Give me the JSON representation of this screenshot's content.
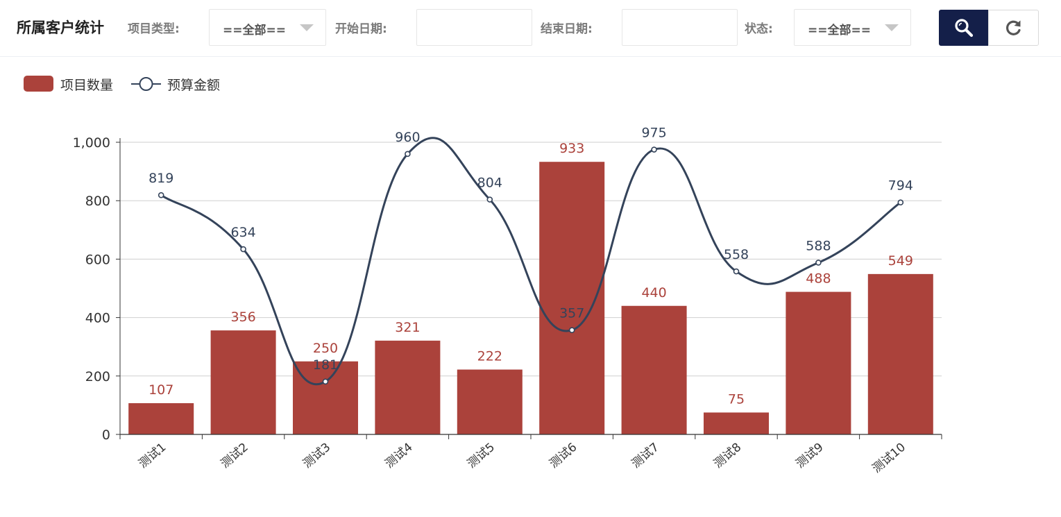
{
  "header": {
    "title": "所属客户统计",
    "project_type_label": "项目类型:",
    "project_type_value": "==全部==",
    "start_date_label": "开始日期:",
    "start_date_value": "",
    "end_date_label": "结束日期:",
    "end_date_value": "",
    "status_label": "状态:",
    "status_value": "==全部=="
  },
  "buttons": {
    "search_icon": "search-icon",
    "refresh_icon": "refresh-icon"
  },
  "colors": {
    "bar": "#ab423b",
    "line": "#34435a",
    "search_button": "#141f49"
  },
  "chart_data": {
    "type": "bar",
    "categories": [
      "测试1",
      "测试2",
      "测试3",
      "测试4",
      "测试5",
      "测试6",
      "测试7",
      "测试8",
      "测试9",
      "测试10"
    ],
    "series": [
      {
        "name": "项目数量",
        "type": "bar",
        "values": [
          107,
          356,
          250,
          321,
          222,
          933,
          440,
          75,
          488,
          549
        ]
      },
      {
        "name": "预算金额",
        "type": "line",
        "smooth": true,
        "values": [
          819,
          634,
          181,
          960,
          804,
          357,
          975,
          558,
          588,
          794
        ]
      }
    ],
    "yticks": [
      "0",
      "200",
      "400",
      "600",
      "800",
      "1,000"
    ],
    "ylim": [
      0,
      1000
    ],
    "grid": true,
    "legend_position": "top-left",
    "data_labels": true
  }
}
